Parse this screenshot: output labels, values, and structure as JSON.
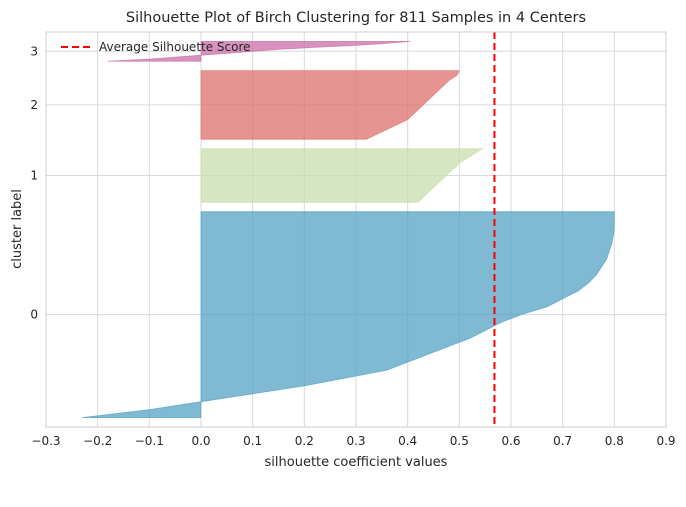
{
  "chart_data": {
    "type": "area",
    "title": "Silhouette Plot of Birch Clustering for 811 Samples in 4 Centers",
    "xlabel": "silhouette coefficient values",
    "ylabel": "cluster label",
    "xlim": [
      -0.3,
      0.9
    ],
    "xticks": [
      -0.3,
      -0.2,
      -0.1,
      0.0,
      0.1,
      0.2,
      0.3,
      0.4,
      0.5,
      0.6,
      0.7,
      0.8,
      0.9
    ],
    "xtick_labels": [
      "−0.3",
      "−0.2",
      "−0.1",
      "0.0",
      "0.1",
      "0.2",
      "0.3",
      "0.4",
      "0.5",
      "0.6",
      "0.7",
      "0.8",
      "0.9"
    ],
    "grid": true,
    "legend_position": "top-left",
    "average_silhouette_score": 0.568,
    "average_line_label": "Average Silhouette Score",
    "average_line_color": "#ff0000",
    "clusters": [
      {
        "label": "0",
        "color": "#4e9ec0",
        "size": 480,
        "sorted_scores_desc": [
          0.8,
          0.8,
          0.8,
          0.798,
          0.795,
          0.79,
          0.785,
          0.775,
          0.765,
          0.75,
          0.73,
          0.7,
          0.67,
          0.62,
          0.58,
          0.55,
          0.52,
          0.48,
          0.44,
          0.4,
          0.36,
          0.28,
          0.2,
          0.1,
          0.0,
          -0.1,
          -0.23
        ]
      },
      {
        "label": "1",
        "color": "#c6dcac",
        "size": 125,
        "sorted_scores_desc": [
          0.545,
          0.53,
          0.515,
          0.5,
          0.49,
          0.48,
          0.47,
          0.46,
          0.45,
          0.44,
          0.43,
          0.42
        ]
      },
      {
        "label": "2",
        "color": "#dd6b66",
        "size": 160,
        "sorted_scores_desc": [
          0.5,
          0.495,
          0.48,
          0.47,
          0.46,
          0.45,
          0.44,
          0.43,
          0.42,
          0.41,
          0.4,
          0.38,
          0.36,
          0.34,
          0.32
        ]
      },
      {
        "label": "3",
        "color": "#c86aa4",
        "size": 46,
        "sorted_scores_desc": [
          0.405,
          0.36,
          0.3,
          0.22,
          0.15,
          0.1,
          0.05,
          0.0,
          -0.05,
          -0.1,
          -0.18
        ]
      }
    ]
  }
}
